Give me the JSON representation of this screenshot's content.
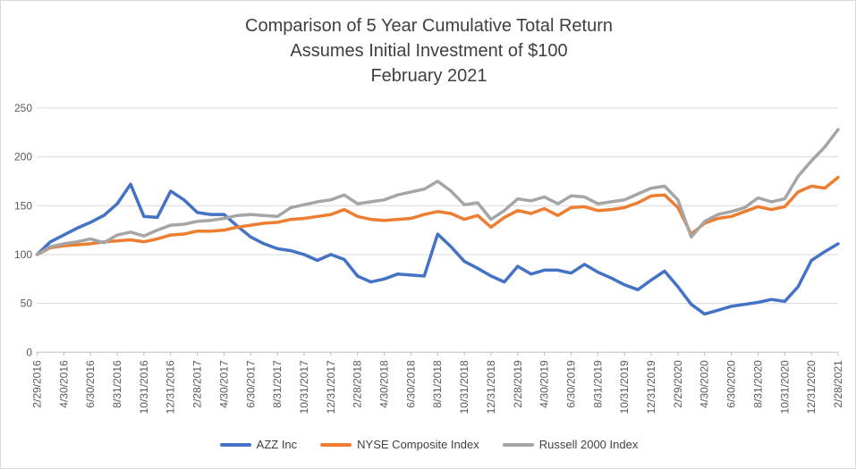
{
  "title": {
    "line1": "Comparison of 5 Year Cumulative Total Return",
    "line2": "Assumes Initial Investment of $100",
    "line3": "February 2021"
  },
  "chart_data": {
    "type": "line",
    "title": "Comparison of 5 Year Cumulative Total Return Assumes Initial Investment of $100 February 2021",
    "xlabel": "",
    "ylabel": "",
    "ylim": [
      0,
      250
    ],
    "y_ticks": [
      0,
      50,
      100,
      150,
      200,
      250
    ],
    "grid": true,
    "legend_position": "bottom",
    "x_tick_every": 2,
    "x": [
      "2/29/2016",
      "3/31/2016",
      "4/30/2016",
      "5/31/2016",
      "6/30/2016",
      "7/31/2016",
      "8/31/2016",
      "9/30/2016",
      "10/31/2016",
      "11/30/2016",
      "12/31/2016",
      "1/31/2017",
      "2/28/2017",
      "3/31/2017",
      "4/30/2017",
      "5/31/2017",
      "6/30/2017",
      "7/31/2017",
      "8/31/2017",
      "9/30/2017",
      "10/31/2017",
      "11/30/2017",
      "12/31/2017",
      "1/31/2018",
      "2/28/2018",
      "3/31/2018",
      "4/30/2018",
      "5/31/2018",
      "6/30/2018",
      "7/31/2018",
      "8/31/2018",
      "9/30/2018",
      "10/31/2018",
      "11/30/2018",
      "12/31/2018",
      "1/31/2019",
      "2/28/2019",
      "3/31/2019",
      "4/30/2019",
      "5/31/2019",
      "6/30/2019",
      "7/31/2019",
      "8/31/2019",
      "9/30/2019",
      "10/31/2019",
      "11/30/2019",
      "12/31/2019",
      "1/31/2020",
      "2/29/2020",
      "3/31/2020",
      "4/30/2020",
      "5/31/2020",
      "6/30/2020",
      "7/31/2020",
      "8/31/2020",
      "9/30/2020",
      "10/31/2020",
      "11/30/2020",
      "12/31/2020",
      "1/31/2021",
      "2/28/2021"
    ],
    "series": [
      {
        "name": "AZZ Inc",
        "color": "#4472C4",
        "values": [
          100,
          113,
          120,
          127,
          133,
          140,
          152,
          172,
          139,
          138,
          165,
          156,
          143,
          141,
          141,
          129,
          118,
          111,
          106,
          104,
          100,
          94,
          100,
          95,
          78,
          72,
          75,
          80,
          79,
          78,
          121,
          108,
          93,
          86,
          78,
          72,
          88,
          80,
          84,
          84,
          81,
          90,
          82,
          76,
          69,
          64,
          74,
          83,
          67,
          49,
          39,
          43,
          47,
          49,
          51,
          54,
          52,
          67,
          94,
          103,
          111
        ]
      },
      {
        "name": "NYSE Composite Index",
        "color": "#ED7D31",
        "values": [
          100,
          107,
          109,
          110,
          111,
          113,
          114,
          115,
          113,
          116,
          120,
          121,
          124,
          124,
          125,
          128,
          130,
          132,
          133,
          136,
          137,
          139,
          141,
          146,
          139,
          136,
          135,
          136,
          137,
          141,
          144,
          142,
          136,
          140,
          128,
          138,
          145,
          142,
          147,
          140,
          148,
          149,
          145,
          146,
          148,
          153,
          160,
          161,
          148,
          121,
          132,
          137,
          139,
          144,
          149,
          146,
          149,
          164,
          170,
          168,
          179
        ]
      },
      {
        "name": "Russell 2000 Index",
        "color": "#A5A5A5",
        "values": [
          100,
          108,
          111,
          113,
          116,
          112,
          120,
          123,
          119,
          125,
          130,
          131,
          134,
          135,
          137,
          140,
          141,
          140,
          139,
          148,
          151,
          154,
          156,
          161,
          152,
          154,
          156,
          161,
          164,
          167,
          175,
          165,
          151,
          153,
          136,
          145,
          157,
          155,
          159,
          152,
          160,
          159,
          152,
          154,
          156,
          162,
          168,
          170,
          156,
          118,
          134,
          141,
          144,
          148,
          158,
          154,
          157,
          180,
          196,
          210,
          228
        ]
      }
    ],
    "axis_text_color": "#595959",
    "gridline_color": "#d9d9d9",
    "axis_line_color": "#bfbfbf"
  }
}
